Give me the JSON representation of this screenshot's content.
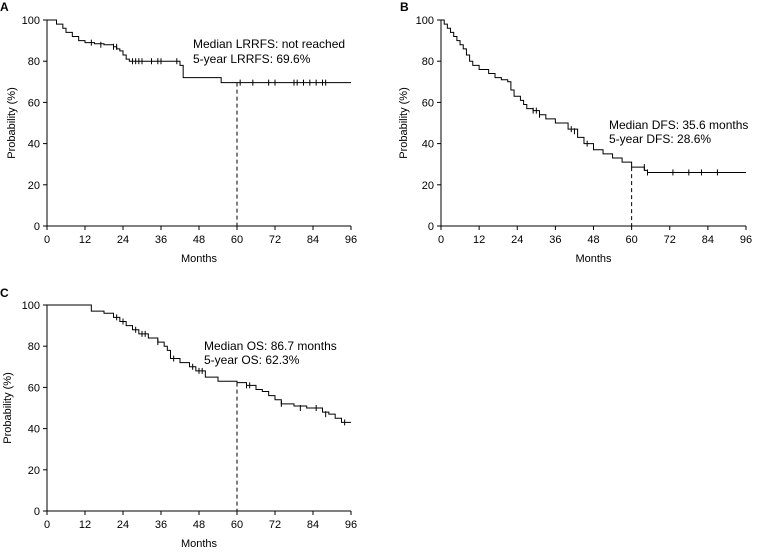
{
  "chart_data": [
    {
      "type": "line",
      "panel": "A",
      "title": "",
      "xlabel": "Months",
      "ylabel": "Probability (%)",
      "xlim": [
        0,
        96
      ],
      "ylim": [
        0,
        100
      ],
      "xticks": [
        0,
        12,
        24,
        36,
        48,
        60,
        72,
        84,
        96
      ],
      "yticks": [
        0,
        20,
        40,
        60,
        80,
        100
      ],
      "grid": false,
      "annotations": [
        "Median LRRFS: not reached",
        "5-year LRRFS: 69.6%"
      ],
      "reference_line": {
        "x": 60,
        "y": 69.6
      },
      "series": [
        {
          "name": "LRRFS",
          "x": [
            0,
            3,
            5,
            6,
            8,
            10,
            12,
            15,
            18,
            21,
            22,
            23,
            24,
            25,
            26,
            28,
            42,
            43,
            55,
            96
          ],
          "y": [
            100,
            98,
            96,
            94,
            92,
            90,
            89,
            88.5,
            88,
            87,
            86,
            85,
            83,
            81,
            80,
            80,
            78,
            72,
            69.6,
            69.6
          ],
          "censor_x": [
            14,
            17,
            21,
            22,
            27,
            28,
            29,
            30,
            33,
            35,
            36,
            41,
            61,
            65,
            70,
            72,
            78,
            79,
            81,
            83,
            85,
            87,
            88
          ],
          "censor_y": [
            89,
            88,
            87,
            87,
            80,
            80,
            80,
            80,
            80,
            80,
            80,
            80,
            69.6,
            69.6,
            69.6,
            69.6,
            69.6,
            69.6,
            69.6,
            69.6,
            69.6,
            69.6,
            69.6
          ]
        }
      ]
    },
    {
      "type": "line",
      "panel": "B",
      "title": "",
      "xlabel": "Months",
      "ylabel": "Probability (%)",
      "xlim": [
        0,
        96
      ],
      "ylim": [
        0,
        100
      ],
      "xticks": [
        0,
        12,
        24,
        36,
        48,
        60,
        72,
        84,
        96
      ],
      "yticks": [
        0,
        20,
        40,
        60,
        80,
        100
      ],
      "grid": false,
      "annotations": [
        "Median DFS: 35.6 months",
        "5-year DFS: 28.6%"
      ],
      "reference_line": {
        "x": 60,
        "y": 28.6
      },
      "series": [
        {
          "name": "DFS",
          "x": [
            0,
            1,
            2,
            3,
            4,
            5,
            6,
            7,
            8,
            9,
            10,
            12,
            15,
            17,
            19,
            21,
            22,
            23,
            25,
            26,
            27,
            29,
            31,
            33,
            36,
            40,
            43,
            45,
            48,
            51,
            54,
            57,
            60,
            64,
            65,
            96
          ],
          "y": [
            100,
            98,
            96,
            94,
            92,
            90,
            88,
            86,
            83,
            80,
            78,
            76,
            74,
            72,
            71,
            70,
            66,
            63,
            61,
            59,
            57,
            56,
            54,
            52,
            50,
            47,
            43,
            40,
            37,
            35,
            33,
            31,
            28.6,
            27,
            26,
            26
          ],
          "censor_x": [
            29,
            30,
            31,
            41,
            42,
            46,
            64,
            65,
            73,
            78,
            82,
            87
          ],
          "censor_y": [
            56,
            56,
            54,
            47,
            46,
            40,
            28.6,
            26,
            26,
            26,
            26,
            26
          ]
        }
      ]
    },
    {
      "type": "line",
      "panel": "C",
      "title": "",
      "xlabel": "Months",
      "ylabel": "Probability (%)",
      "xlim": [
        0,
        96
      ],
      "ylim": [
        0,
        100
      ],
      "xticks": [
        0,
        12,
        24,
        36,
        48,
        60,
        72,
        84,
        96
      ],
      "yticks": [
        0,
        20,
        40,
        60,
        80,
        100
      ],
      "grid": false,
      "annotations": [
        "Median OS: 86.7 months",
        "5-year OS: 62.3%"
      ],
      "reference_line": {
        "x": 60,
        "y": 62.3
      },
      "series": [
        {
          "name": "OS",
          "x": [
            0,
            14,
            18,
            21,
            23,
            25,
            27,
            29,
            32,
            35,
            37,
            38,
            39,
            42,
            45,
            47,
            50,
            54,
            60,
            63,
            66,
            68,
            70,
            72,
            74,
            78,
            82,
            85,
            87,
            89,
            91,
            93,
            96
          ],
          "y": [
            100,
            97,
            96,
            94,
            92,
            90,
            88,
            86,
            84,
            82,
            80,
            78,
            74,
            72,
            70,
            68,
            65,
            63,
            62.3,
            61,
            59,
            58,
            56,
            54,
            52,
            51,
            50,
            50,
            48,
            47,
            45,
            43,
            43
          ],
          "censor_x": [
            22,
            24,
            28,
            30,
            31,
            35,
            40,
            46,
            48,
            49,
            63,
            64,
            74,
            80,
            85,
            88,
            94
          ],
          "censor_y": [
            94,
            92,
            88,
            86,
            86,
            82,
            74,
            70,
            68,
            68,
            61,
            61,
            52,
            50,
            50,
            47,
            43
          ]
        }
      ]
    }
  ]
}
